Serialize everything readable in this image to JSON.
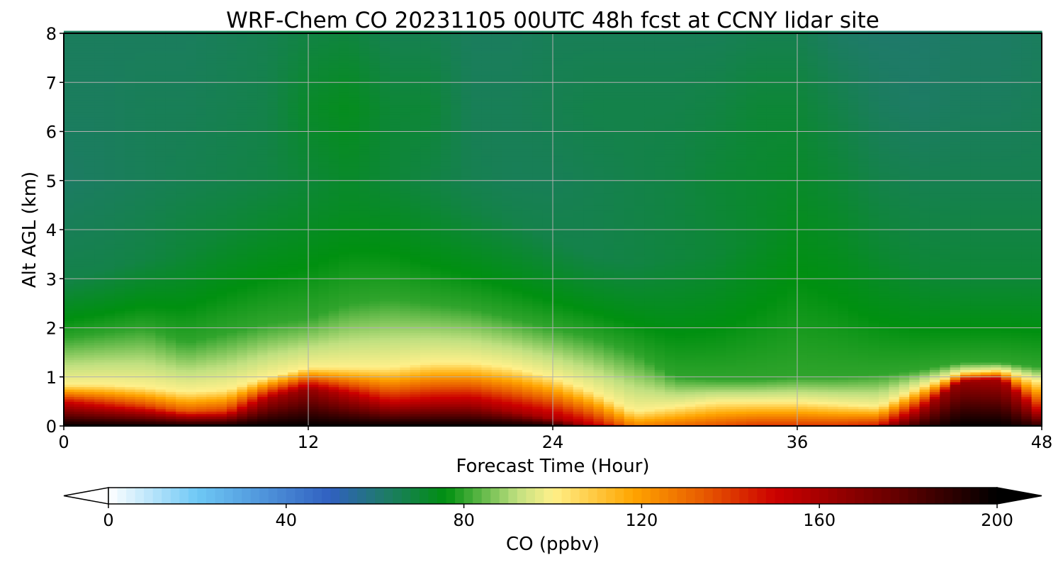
{
  "chart_data": {
    "type": "heatmap",
    "title": "WRF-Chem CO  20231105 00UTC 48h fcst at CCNY lidar site",
    "xlabel": "Forecast Time (Hour)",
    "ylabel": "Alt AGL (km)",
    "xlim": [
      0,
      48
    ],
    "ylim": [
      0,
      8
    ],
    "xticks": [
      "0",
      "12",
      "24",
      "36",
      "48"
    ],
    "yticks": [
      "0",
      "1",
      "2",
      "3",
      "4",
      "5",
      "6",
      "7",
      "8"
    ],
    "grid": true,
    "x": [
      0,
      2,
      4,
      6,
      8,
      10,
      12,
      14,
      16,
      18,
      20,
      22,
      24,
      26,
      28,
      30,
      32,
      34,
      36,
      38,
      40,
      42,
      44,
      46,
      48
    ],
    "field_description_units": "ppbv",
    "colorbar": {
      "label": "CO  (ppbv)",
      "range": [
        0,
        200
      ],
      "ticks": [
        "0",
        "40",
        "80",
        "120",
        "160",
        "200"
      ],
      "extend": "both",
      "stops": [
        {
          "v": 0,
          "c": "#ffffff"
        },
        {
          "v": 20,
          "c": "#6ec8f5"
        },
        {
          "v": 50,
          "c": "#3060c0"
        },
        {
          "v": 62,
          "c": "#1f7a6a"
        },
        {
          "v": 76,
          "c": "#009010"
        },
        {
          "v": 92,
          "c": "#c0e080"
        },
        {
          "v": 100,
          "c": "#fff08a"
        },
        {
          "v": 118,
          "c": "#ffa500"
        },
        {
          "v": 134,
          "c": "#e85a00"
        },
        {
          "v": 150,
          "c": "#cc0000"
        },
        {
          "v": 176,
          "c": "#6a0000"
        },
        {
          "v": 200,
          "c": "#000000"
        }
      ]
    },
    "profiles": [
      {
        "t": 0,
        "h": [
          0.5,
          0.85,
          1.8,
          3.0
        ],
        "v": [
          200,
          150,
          100,
          80,
          67,
          63,
          64,
          64
        ]
      },
      {
        "t": 2,
        "h": [
          0.45,
          0.85,
          1.9,
          3.2
        ],
        "v": [
          200,
          145,
          100,
          80,
          67,
          64,
          64,
          64
        ]
      },
      {
        "t": 4,
        "h": [
          0.4,
          0.8,
          2.0,
          3.4
        ],
        "v": [
          200,
          140,
          100,
          80,
          68,
          65,
          65,
          64
        ]
      },
      {
        "t": 6,
        "h": [
          0.3,
          0.7,
          1.7,
          3.5
        ],
        "v": [
          200,
          135,
          100,
          80,
          70,
          66,
          65,
          64
        ]
      },
      {
        "t": 8,
        "h": [
          0.3,
          0.75,
          1.9,
          4.0
        ],
        "v": [
          200,
          140,
          100,
          80,
          70,
          67,
          66,
          65
        ]
      },
      {
        "t": 10,
        "h": [
          0.55,
          1.0,
          2.1,
          4.2
        ],
        "v": [
          200,
          160,
          100,
          80,
          71,
          68,
          67,
          66
        ]
      },
      {
        "t": 12,
        "h": [
          0.75,
          1.2,
          2.2,
          4.3
        ],
        "v": [
          200,
          165,
          100,
          80,
          72,
          70,
          72,
          68
        ]
      },
      {
        "t": 14,
        "h": [
          0.65,
          1.2,
          2.5,
          4.4
        ],
        "v": [
          200,
          155,
          100,
          80,
          73,
          72,
          74,
          69
        ]
      },
      {
        "t": 16,
        "h": [
          0.5,
          1.2,
          2.6,
          4.5
        ],
        "v": [
          200,
          150,
          100,
          80,
          72,
          70,
          70,
          66
        ]
      },
      {
        "t": 18,
        "h": [
          0.5,
          1.3,
          2.5,
          4.5
        ],
        "v": [
          200,
          155,
          100,
          80,
          70,
          68,
          70,
          66
        ]
      },
      {
        "t": 20,
        "h": [
          0.45,
          1.3,
          2.4,
          4.4
        ],
        "v": [
          200,
          160,
          100,
          80,
          68,
          66,
          65,
          64
        ]
      },
      {
        "t": 22,
        "h": [
          0.3,
          1.2,
          2.2,
          4.2
        ],
        "v": [
          200,
          160,
          100,
          80,
          67,
          65,
          65,
          64
        ]
      },
      {
        "t": 24,
        "h": [
          0.15,
          1.0,
          2.0,
          3.8
        ],
        "v": [
          200,
          160,
          100,
          80,
          67,
          65,
          66,
          65
        ]
      },
      {
        "t": 26,
        "h": [
          0.05,
          0.7,
          1.8,
          3.5
        ],
        "v": [
          160,
          150,
          100,
          80,
          67,
          66,
          67,
          65
        ]
      },
      {
        "t": 28,
        "h": [
          0.02,
          0.3,
          1.5,
          3.3
        ],
        "v": [
          140,
          125,
          100,
          80,
          68,
          67,
          67,
          65
        ]
      },
      {
        "t": 30,
        "h": [
          0.02,
          0.4,
          1.0,
          3.4
        ],
        "v": [
          140,
          130,
          100,
          80,
          69,
          68,
          67,
          65
        ]
      },
      {
        "t": 32,
        "h": [
          0.02,
          0.5,
          0.95,
          3.5
        ],
        "v": [
          145,
          135,
          100,
          80,
          70,
          70,
          68,
          65
        ]
      },
      {
        "t": 34,
        "h": [
          0.02,
          0.5,
          0.95,
          3.8
        ],
        "v": [
          150,
          140,
          100,
          80,
          72,
          71,
          70,
          66
        ]
      },
      {
        "t": 36,
        "h": [
          0.02,
          0.5,
          1.0,
          4.0
        ],
        "v": [
          155,
          140,
          100,
          80,
          74,
          72,
          70,
          66
        ]
      },
      {
        "t": 38,
        "h": [
          0.02,
          0.45,
          1.0,
          3.8
        ],
        "v": [
          155,
          140,
          100,
          80,
          73,
          70,
          67,
          63
        ]
      },
      {
        "t": 40,
        "h": [
          0.02,
          0.4,
          1.05,
          3.5
        ],
        "v": [
          165,
          145,
          100,
          80,
          71,
          67,
          64,
          62
        ]
      },
      {
        "t": 42,
        "h": [
          0.3,
          0.8,
          1.15,
          3.2
        ],
        "v": [
          190,
          160,
          100,
          80,
          70,
          66,
          63,
          62
        ]
      },
      {
        "t": 44,
        "h": [
          0.9,
          1.1,
          1.3,
          3.0
        ],
        "v": [
          200,
          165,
          100,
          80,
          70,
          66,
          64,
          63
        ]
      },
      {
        "t": 46,
        "h": [
          0.95,
          1.15,
          1.3,
          3.0
        ],
        "v": [
          200,
          160,
          100,
          80,
          70,
          66,
          64,
          63
        ]
      },
      {
        "t": 48,
        "h": [
          0.25,
          0.9,
          1.2,
          3.0
        ],
        "v": [
          190,
          150,
          100,
          80,
          70,
          66,
          65,
          64
        ]
      }
    ]
  }
}
